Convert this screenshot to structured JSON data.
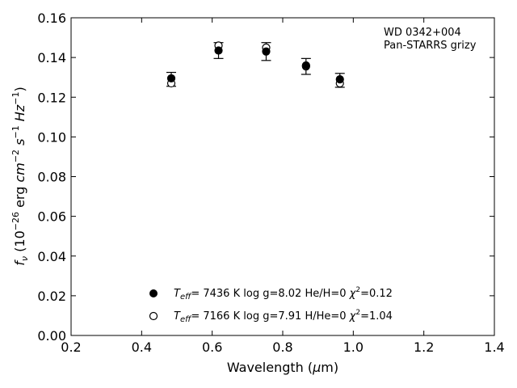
{
  "chart_data": {
    "type": "scatter",
    "xlabel": "Wavelength (μm)",
    "ylabel": "f_ν (10^−26 erg cm^−2 s^−1 Hz^−1)",
    "xlim": [
      0.2,
      1.4
    ],
    "ylim": [
      0.0,
      0.16
    ],
    "x_ticks": [
      "0.2",
      "0.4",
      "0.6",
      "0.8",
      "1.0",
      "1.2",
      "1.4"
    ],
    "y_ticks": [
      "0.00",
      "0.02",
      "0.04",
      "0.06",
      "0.08",
      "0.10",
      "0.12",
      "0.14",
      "0.16"
    ],
    "grid": false,
    "annotation": [
      "WD 0342+004",
      "Pan-STARRS grizy"
    ],
    "observed": {
      "x": [
        0.484,
        0.618,
        0.753,
        0.866,
        0.962
      ],
      "y": [
        0.129,
        0.1435,
        0.143,
        0.1355,
        0.1285
      ],
      "yerr": [
        0.0035,
        0.004,
        0.0045,
        0.004,
        0.0035
      ]
    },
    "series": [
      {
        "marker": "filled",
        "x": [
          0.484,
          0.618,
          0.753,
          0.866,
          0.962
        ],
        "y": [
          0.1295,
          0.1435,
          0.143,
          0.136,
          0.129
        ],
        "teff": "7436 K",
        "logg": "log g=8.02",
        "composition": "He/H=0",
        "chi2": "=0.12"
      },
      {
        "marker": "open",
        "x": [
          0.484,
          0.618,
          0.753,
          0.866,
          0.962
        ],
        "y": [
          0.127,
          0.146,
          0.145,
          0.1355,
          0.127
        ],
        "teff": "7166 K",
        "logg": "log g=7.91",
        "composition": "H/He=0",
        "chi2": "=1.04"
      }
    ]
  }
}
